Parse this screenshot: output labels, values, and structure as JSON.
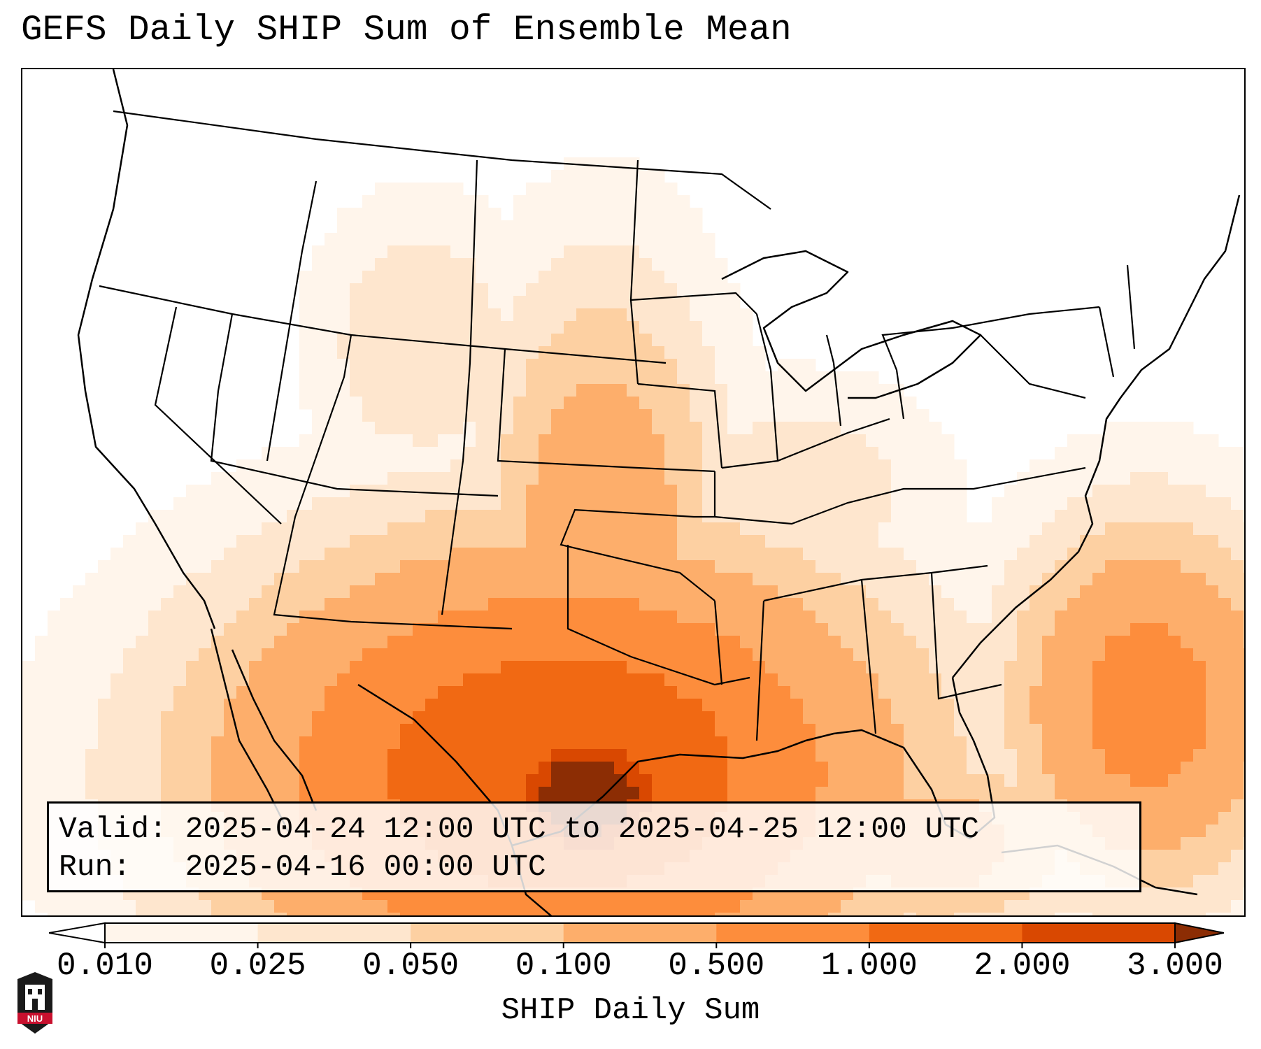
{
  "title": "GEFS Daily SHIP Sum of Ensemble Mean",
  "valid_line": "Valid: 2025-04-24 12:00 UTC to 2025-04-25 12:00 UTC",
  "run_line": "Run:   2025-04-16 00:00 UTC",
  "colorbar": {
    "label": "SHIP Daily Sum",
    "ticks": [
      "0.010",
      "0.025",
      "0.050",
      "0.100",
      "0.500",
      "1.000",
      "2.000",
      "3.000"
    ],
    "colors": [
      "#fff5eb",
      "#fee6ce",
      "#fdd0a2",
      "#fdae6b",
      "#fd8d3c",
      "#f16913",
      "#d94801",
      "#8c2d04"
    ]
  },
  "logo": {
    "text": "NIU",
    "icon": "niu-castle-logo"
  },
  "map": {
    "region": "Contiguous United States",
    "field": "SHIP daily sum",
    "maximum_area": "Central Texas into the northwestern Gulf of Mexico"
  }
}
